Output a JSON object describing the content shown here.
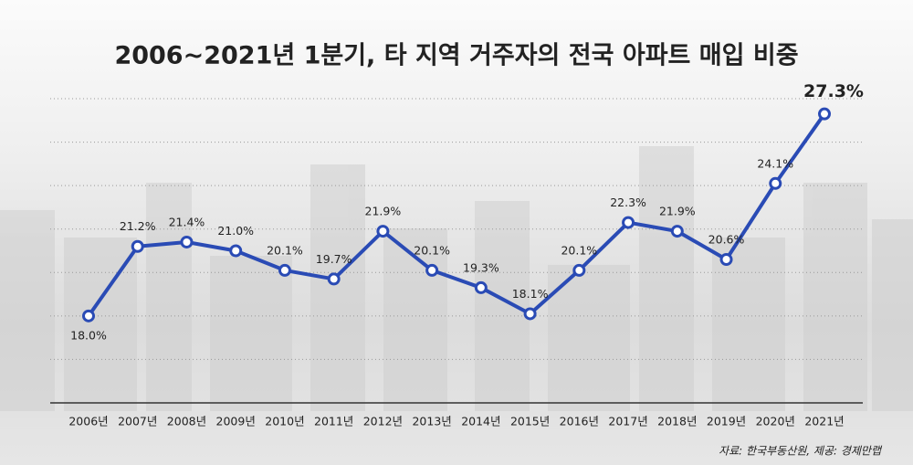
{
  "chart_data": {
    "type": "line",
    "title": "2006~2021년 1분기, 타 지역 거주자의 전국 아파트 매입 비중",
    "categories": [
      "2006년",
      "2007년",
      "2008년",
      "2009년",
      "2010년",
      "2011년",
      "2012년",
      "2013년",
      "2014년",
      "2015년",
      "2016년",
      "2017년",
      "2018년",
      "2019년",
      "2020년",
      "2021년"
    ],
    "values": [
      18.0,
      21.2,
      21.4,
      21.0,
      20.1,
      19.7,
      21.9,
      20.1,
      19.3,
      18.1,
      20.1,
      22.3,
      21.9,
      20.6,
      24.1,
      27.3
    ],
    "value_labels": [
      "18.0%",
      "21.2%",
      "21.4%",
      "21.0%",
      "20.1%",
      "19.7%",
      "21.9%",
      "20.1%",
      "19.3%",
      "18.1%",
      "20.1%",
      "22.3%",
      "21.9%",
      "20.6%",
      "24.1%",
      "27.3%"
    ],
    "color": "#2a4bb5",
    "ylim": [
      14,
      28
    ],
    "yticks": [
      16,
      18,
      20,
      22,
      24,
      26,
      28
    ],
    "grid": true,
    "source": "자료: 한국부동산원, 제공: 경제만랩"
  }
}
